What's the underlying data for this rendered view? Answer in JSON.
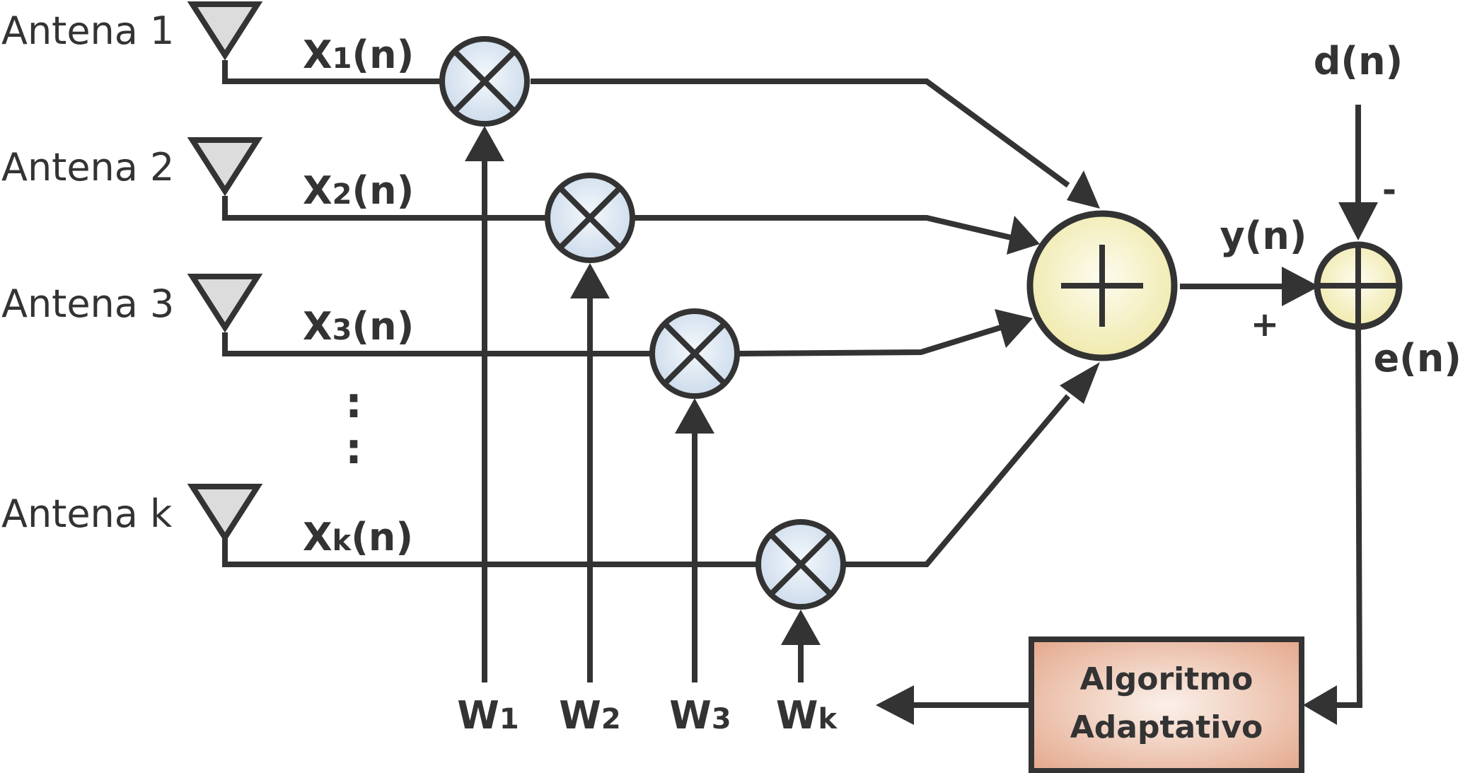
{
  "antennas": [
    {
      "label": "Antena 1",
      "signal": "X",
      "sub": "1",
      "suffix": "(n)"
    },
    {
      "label": "Antena 2",
      "signal": "X",
      "sub": "2",
      "suffix": "(n)"
    },
    {
      "label": "Antena 3",
      "signal": "X",
      "sub": "3",
      "suffix": "(n)"
    },
    {
      "label": "Antena k",
      "signal": "X",
      "sub": "k",
      "suffix": "(n)"
    }
  ],
  "weights": [
    {
      "letter": "W",
      "sub": "1"
    },
    {
      "letter": "W",
      "sub": "2"
    },
    {
      "letter": "W",
      "sub": "3"
    },
    {
      "letter": "W",
      "sub": "k"
    }
  ],
  "ellipsis": ":",
  "desired": "d(n)",
  "output": "y(n)",
  "error": "e(n)",
  "plus_sign": "+",
  "minus_sign": "-",
  "algorithm": {
    "line1": "Algoritmo",
    "line2": "Adaptativo"
  },
  "colors": {
    "stroke": "#333333",
    "multiplier_fill": "#dce8f4",
    "summer_fill": "#f7f3c4",
    "algorithm_fill": "#eab8a0"
  }
}
